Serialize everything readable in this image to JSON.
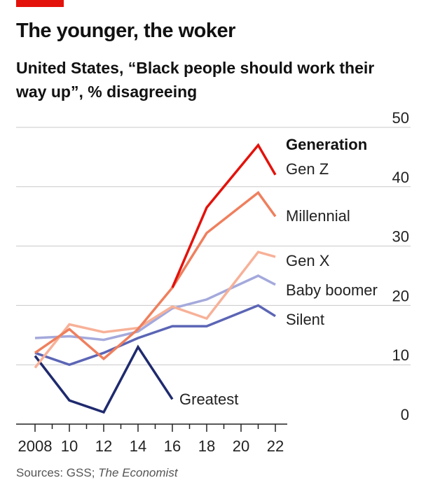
{
  "header": {
    "title": "The younger, the woker",
    "subtitle": "United States, “Black people should work their way up”,  % disagreeing"
  },
  "source": {
    "label": "Sources: GSS; ",
    "publication": "The Economist"
  },
  "colors": {
    "brand_red": "#e3120b",
    "gridline": "#c8c8c8",
    "axis": "#222222"
  },
  "chart_data": {
    "type": "line",
    "title": "The younger, the woker",
    "subtitle": "United States, “Black people should work their way up”,  % disagreeing",
    "xlabel": "",
    "ylabel": "% disagreeing",
    "xlim": [
      2007,
      2023
    ],
    "ylim": [
      0,
      50
    ],
    "x_ticks": [
      2008,
      2010,
      2012,
      2014,
      2016,
      2018,
      2020,
      2022
    ],
    "x_tick_labels": [
      "2008",
      "10",
      "12",
      "14",
      "16",
      "18",
      "20",
      "22"
    ],
    "y_ticks": [
      0,
      10,
      20,
      30,
      40,
      50
    ],
    "y_tick_labels": [
      "0",
      "10",
      "20",
      "30",
      "40",
      "50"
    ],
    "y_axis_side": "right",
    "grid": true,
    "legend_title": "Generation",
    "legend_placement": "right, labels at line ends",
    "series": [
      {
        "name": "Greatest",
        "color": "#1f2a6e",
        "x": [
          2008,
          2010,
          2012,
          2014,
          2016
        ],
        "y": [
          11.5,
          4,
          2,
          13,
          4.2
        ]
      },
      {
        "name": "Silent",
        "color": "#5b65b5",
        "x": [
          2008,
          2010,
          2012,
          2014,
          2016,
          2018,
          2021,
          2022
        ],
        "y": [
          12,
          10,
          12,
          14.5,
          16.5,
          16.5,
          20,
          18.2
        ]
      },
      {
        "name": "Baby boomer",
        "color": "#a4a9dc",
        "x": [
          2008,
          2010,
          2012,
          2014,
          2016,
          2018,
          2021,
          2022
        ],
        "y": [
          14.5,
          14.8,
          14.2,
          15.6,
          19.5,
          21,
          25,
          23.5
        ]
      },
      {
        "name": "Gen X",
        "color": "#f7b198",
        "x": [
          2008,
          2010,
          2012,
          2014,
          2016,
          2018,
          2021,
          2022
        ],
        "y": [
          9.5,
          16.8,
          15.5,
          16.2,
          19.8,
          17.8,
          29,
          28.2
        ]
      },
      {
        "name": "Millennial",
        "color": "#ef7f5d",
        "x": [
          2008,
          2010,
          2012,
          2014,
          2016,
          2018,
          2021,
          2022
        ],
        "y": [
          12,
          16,
          11,
          16,
          23,
          32.2,
          39,
          35
        ]
      },
      {
        "name": "Gen Z",
        "color": "#e3120b",
        "x": [
          2016,
          2018,
          2021,
          2022
        ],
        "y": [
          23,
          36.5,
          47,
          42
        ]
      }
    ]
  }
}
